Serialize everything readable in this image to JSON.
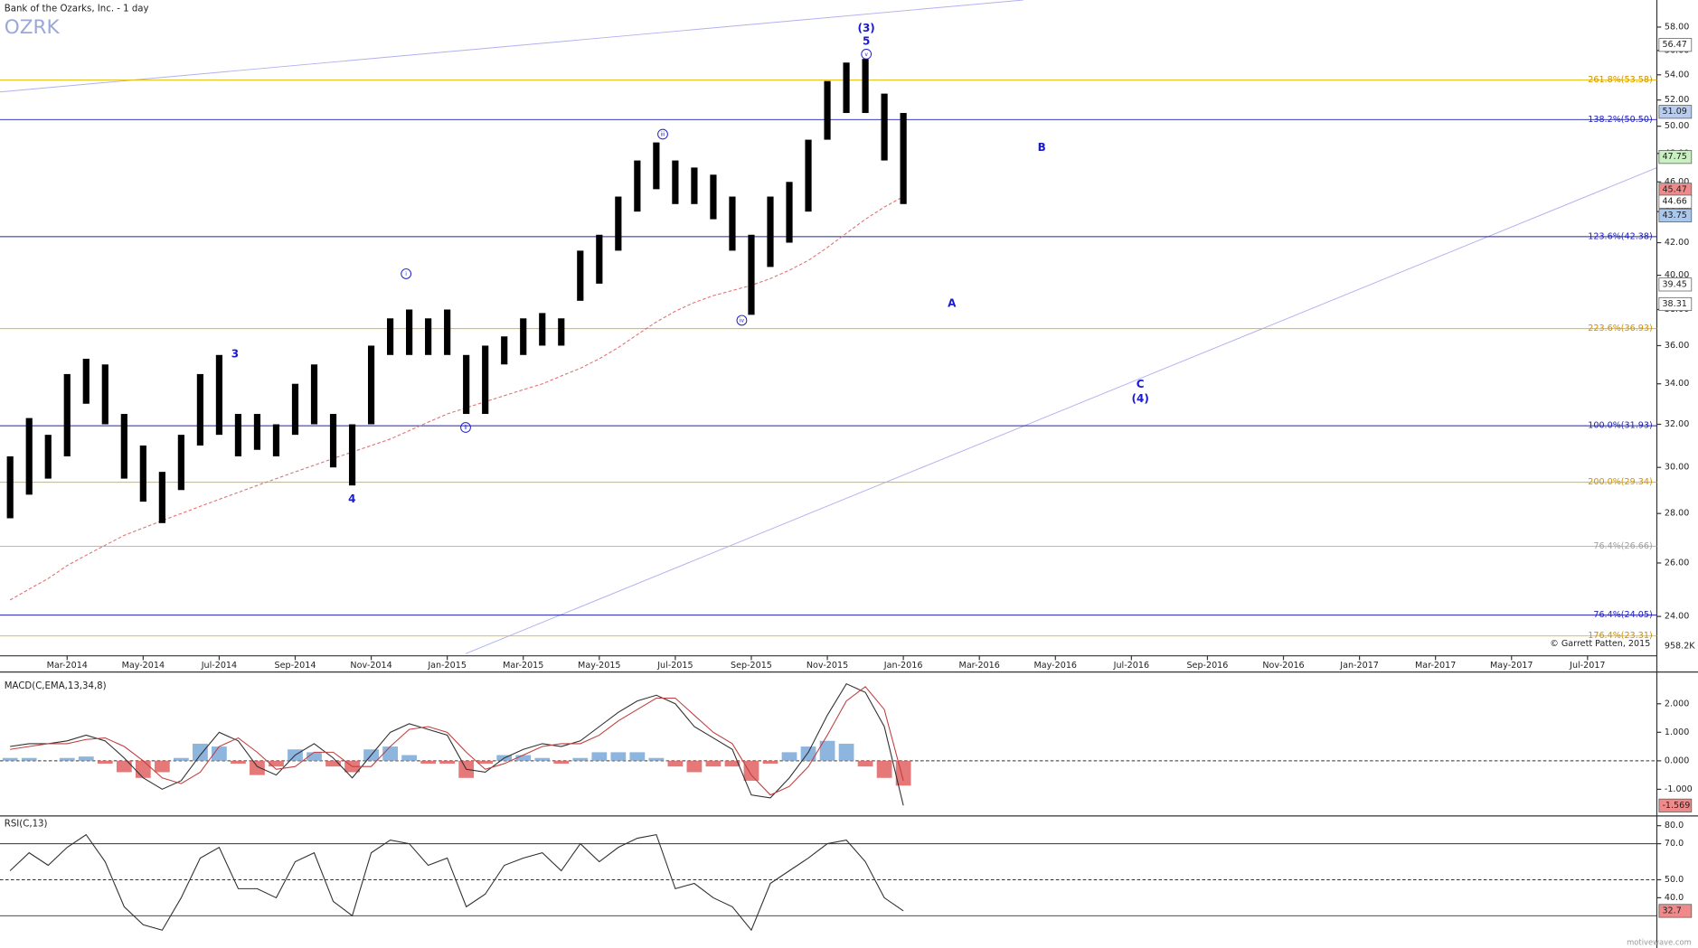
{
  "header": {
    "title": "Bank of the Ozarks, Inc. - 1 day",
    "symbol": "OZRK",
    "copyright": "© Garrett Patten, 2015",
    "watermark": "motivewave.com",
    "volume_label": "958.2K"
  },
  "chart_data": [
    {
      "type": "ohlc",
      "categories": [
        null,
        null,
        null,
        "Mar-2014",
        null,
        null,
        null,
        "May-2014",
        null,
        null,
        null,
        "Jul-2014",
        null,
        null,
        null,
        "Sep-2014",
        null,
        null,
        null,
        "Nov-2014",
        null,
        null,
        null,
        "Jan-2015",
        null,
        null,
        null,
        "Mar-2015",
        null,
        null,
        null,
        "May-2015",
        null,
        null,
        null,
        "Jul-2015",
        null,
        null,
        null,
        "Sep-2015",
        null,
        null,
        null,
        "Nov-2015",
        null,
        null,
        null,
        "Jan-2016",
        null,
        null,
        null,
        "Mar-2016",
        null,
        null,
        null,
        "May-2016",
        null,
        null,
        null,
        "Jul-2016",
        null,
        null,
        null,
        "Sep-2016",
        null,
        null,
        null,
        "Nov-2016",
        null,
        null,
        null,
        "Jan-2017",
        null,
        null,
        null,
        "Mar-2017",
        null,
        null,
        null,
        "May-2017",
        null,
        null,
        null,
        "Jul-2017"
      ],
      "series": [
        {
          "color": "#000000",
          "high": [
            30.5,
            32.3,
            31.5,
            34.5,
            35.3,
            35,
            32.5,
            31,
            29.8,
            31.5,
            34.5,
            35.5,
            32.5,
            32.5,
            32,
            34,
            35,
            32.5,
            32,
            36,
            37.5,
            38,
            37.5,
            38,
            35.5,
            36,
            36.5,
            37.5,
            37.8,
            37.5,
            41.5,
            42.5,
            45,
            47.5,
            48.8,
            47.5,
            47,
            46.5,
            45,
            42.5,
            45,
            46,
            49,
            53.5,
            55,
            55.3,
            52.5,
            51,
            null,
            null,
            null,
            null,
            null,
            null,
            null,
            null,
            null,
            null,
            null,
            null,
            null,
            null,
            null,
            null,
            null,
            null,
            null,
            null,
            null,
            null,
            null,
            null,
            null,
            null,
            null,
            null,
            null,
            null,
            null,
            null,
            null,
            null,
            null,
            null
          ],
          "low": [
            27.8,
            28.8,
            29.5,
            30.5,
            33,
            32,
            29.5,
            28.5,
            27.6,
            29,
            31,
            31.5,
            30.5,
            30.8,
            30.5,
            31.5,
            32,
            30,
            29.2,
            32,
            35.5,
            35.5,
            35.5,
            35.5,
            32.5,
            32.5,
            35,
            35.5,
            36,
            36,
            38.5,
            39.5,
            41.5,
            44,
            45.5,
            44.5,
            44.5,
            43.5,
            41.5,
            37.7,
            40.5,
            42,
            44,
            49,
            51,
            51,
            47.5,
            44.5,
            null,
            null,
            null,
            null,
            null,
            null,
            null,
            null,
            null,
            null,
            null,
            null,
            null,
            null,
            null,
            null,
            null,
            null,
            null,
            null,
            null,
            null,
            null,
            null,
            null,
            null,
            null,
            null,
            null,
            null,
            null,
            null,
            null,
            null,
            null,
            null
          ]
        }
      ],
      "overlays": [
        {
          "color": "#e07070",
          "values": [
            24.6,
            25.0,
            25.4,
            25.9,
            26.3,
            26.7,
            27.1,
            27.4,
            27.7,
            28.0,
            28.3,
            28.6,
            28.9,
            29.2,
            29.5,
            29.8,
            30.1,
            30.4,
            30.7,
            31.0,
            31.3,
            31.7,
            32.1,
            32.5,
            32.8,
            33.1,
            33.4,
            33.7,
            34.0,
            34.4,
            34.8,
            35.3,
            35.9,
            36.6,
            37.3,
            37.9,
            38.4,
            38.8,
            39.1,
            39.4,
            39.8,
            40.3,
            40.9,
            41.7,
            42.6,
            43.5,
            44.3,
            45.0,
            null,
            null,
            null,
            null,
            null,
            null,
            null,
            null,
            null,
            null,
            null,
            null,
            null,
            null,
            null,
            null,
            null,
            null,
            null,
            null,
            null,
            null,
            null,
            null,
            null,
            null,
            null,
            null,
            null,
            null,
            null,
            null,
            null,
            null,
            null,
            null
          ]
        }
      ],
      "ylim": [
        22.7,
        60.4
      ],
      "log_scale": true,
      "yticks": [
        {
          "value": 24,
          "label": "24.00"
        },
        {
          "value": 26,
          "label": "26.00"
        },
        {
          "value": 28,
          "label": "28.00"
        },
        {
          "value": 30,
          "label": "30.00"
        },
        {
          "value": 32,
          "label": "32.00"
        },
        {
          "value": 34,
          "label": "34.00"
        },
        {
          "value": 36,
          "label": "36.00"
        },
        {
          "value": 38,
          "label": "38.00"
        },
        {
          "value": 40,
          "label": "40.00"
        },
        {
          "value": 42,
          "label": "42.00"
        },
        {
          "value": 44,
          "label": "44.00"
        },
        {
          "value": 46,
          "label": "46.00"
        },
        {
          "value": 48,
          "label": "48.00"
        },
        {
          "value": 50,
          "label": "50.00"
        },
        {
          "value": 52,
          "label": "52.00"
        },
        {
          "value": 54,
          "label": "54.00"
        },
        {
          "value": 56,
          "label": "56.00"
        },
        {
          "value": 58,
          "label": "58.00"
        }
      ],
      "levels": [
        {
          "value": 53.58,
          "label": "261.8%(53.58)",
          "color": "#e8b800",
          "text_color": "#d09000"
        },
        {
          "value": 50.5,
          "label": "138.2%(50.50)",
          "color": "#2020b0",
          "text_color": "#2020b0"
        },
        {
          "value": 42.38,
          "label": "123.6%(42.38)",
          "color": "#2020b0",
          "text_color": "#2020b0"
        },
        {
          "value": 36.93,
          "label": "223.6%(36.93)",
          "color": "#e8b800",
          "text_color": "#d09000"
        },
        {
          "value": 31.93,
          "label": "100.0%(31.93)",
          "color": "#2020b0",
          "text_color": "#2020b0"
        },
        {
          "value": 29.34,
          "label": "200.0%(29.34)",
          "color": "#e8b800",
          "text_color": "#d09000"
        },
        {
          "value": 26.66,
          "label": "76.4%(26.66)",
          "color": "#b0b0b0",
          "text_color": "#a0a0a0"
        },
        {
          "value": 24.05,
          "label": "76.4%(24.05)",
          "color": "#2020b0",
          "text_color": "#2020b0"
        },
        {
          "value": 23.31,
          "label": "176.4%(23.31)",
          "color": "#e8b800",
          "text_color": "#d09000"
        }
      ],
      "price_markers": [
        {
          "value": 56.47,
          "color": "#ffffff"
        },
        {
          "value": 51.09,
          "color": "#b8ccf0"
        },
        {
          "value": 47.75,
          "color": "#c8f0c0"
        },
        {
          "value": 45.47,
          "color": "#f08a8a"
        },
        {
          "value": 44.66,
          "color": "#ffffff"
        },
        {
          "value": 43.75,
          "color": "#a8c8f0"
        },
        {
          "value": 39.45,
          "color": "#ffffff"
        },
        {
          "value": 38.31,
          "color": "#ffffff"
        }
      ],
      "annotations": [
        {
          "text": "3"
        },
        {
          "text": "4"
        },
        {
          "text": "i",
          "circled": true
        },
        {
          "text": "ii",
          "circled": true
        },
        {
          "text": "iii",
          "circled": true
        },
        {
          "text": "iv",
          "circled": true
        },
        {
          "text": "v",
          "circled": true
        },
        {
          "text": "5"
        },
        {
          "text": "(3)"
        },
        {
          "text": "A"
        },
        {
          "text": "B"
        },
        {
          "text": "C"
        },
        {
          "text": "(4)"
        }
      ]
    },
    {
      "type": "macd",
      "title": "MACD(C,EMA,13,34,8)",
      "series": [
        {
          "color": "#303030",
          "values": [
            0.5,
            0.6,
            0.6,
            0.7,
            0.9,
            0.7,
            0.1,
            -0.6,
            -1.0,
            -0.7,
            0.2,
            1.0,
            0.7,
            -0.2,
            -0.5,
            0.2,
            0.6,
            0.1,
            -0.6,
            0.2,
            1.0,
            1.3,
            1.1,
            0.9,
            -0.3,
            -0.4,
            0.1,
            0.4,
            0.6,
            0.5,
            0.7,
            1.2,
            1.7,
            2.1,
            2.3,
            2.0,
            1.2,
            0.8,
            0.4,
            -1.2,
            -1.3,
            -0.6,
            0.3,
            1.6,
            2.7,
            2.4,
            1.2,
            -1.569
          ]
        },
        {
          "color": "#c04040",
          "values": [
            0.4,
            0.5,
            0.6,
            0.6,
            0.75,
            0.8,
            0.5,
            0.0,
            -0.6,
            -0.8,
            -0.4,
            0.5,
            0.8,
            0.3,
            -0.3,
            -0.2,
            0.3,
            0.3,
            -0.2,
            -0.2,
            0.5,
            1.1,
            1.2,
            1.0,
            0.3,
            -0.3,
            -0.1,
            0.2,
            0.5,
            0.6,
            0.6,
            0.9,
            1.4,
            1.8,
            2.2,
            2.2,
            1.6,
            1.0,
            0.6,
            -0.5,
            -1.2,
            -0.9,
            -0.2,
            0.9,
            2.1,
            2.6,
            1.8,
            -0.7
          ]
        }
      ],
      "histogram": {
        "positive_color": "#7aa8d8",
        "negative_color": "#e06060",
        "values": [
          0.1,
          0.1,
          0,
          0.1,
          0.15,
          -0.1,
          -0.4,
          -0.6,
          -0.4,
          0.1,
          0.6,
          0.5,
          -0.1,
          -0.5,
          -0.2,
          0.4,
          0.3,
          -0.2,
          -0.4,
          0.4,
          0.5,
          0.2,
          -0.1,
          -0.1,
          -0.6,
          -0.1,
          0.2,
          0.2,
          0.1,
          -0.1,
          0.1,
          0.3,
          0.3,
          0.3,
          0.1,
          -0.2,
          -0.4,
          -0.2,
          -0.2,
          -0.7,
          -0.1,
          0.3,
          0.5,
          0.7,
          0.6,
          -0.2,
          -0.6,
          -0.87
        ]
      },
      "ylim": [
        -1.86,
        3.0
      ],
      "yticks": [
        {
          "value": -1,
          "label": "-1.000"
        },
        {
          "value": 0,
          "label": "0.000"
        },
        {
          "value": 1,
          "label": "1.000"
        },
        {
          "value": 2,
          "label": "2.000"
        }
      ],
      "levels": [
        {
          "value": 0,
          "style": "dashed"
        }
      ],
      "marker": {
        "value": -1.569,
        "color": "#f08a8a"
      }
    },
    {
      "type": "rsi",
      "title": "RSI(C,13)",
      "series": [
        {
          "color": "#303030",
          "values": [
            55,
            65,
            58,
            68,
            75,
            60,
            35,
            25,
            22,
            40,
            62,
            68,
            45,
            45,
            40,
            60,
            65,
            38,
            30,
            65,
            72,
            70,
            58,
            62,
            35,
            42,
            58,
            62,
            65,
            55,
            70,
            60,
            68,
            73,
            75,
            45,
            48,
            40,
            35,
            22,
            48,
            55,
            62,
            70,
            72,
            60,
            40,
            32.7
          ]
        }
      ],
      "ylim": [
        12.1,
        83.6
      ],
      "yticks": [
        {
          "value": 40,
          "label": "40.0"
        },
        {
          "value": 50,
          "label": "50.0"
        },
        {
          "value": 70,
          "label": "70.0"
        },
        {
          "value": 80,
          "label": "80.0"
        }
      ],
      "levels": [
        {
          "value": 70,
          "style": "solid"
        },
        {
          "value": 50,
          "style": "dashed"
        },
        {
          "value": 30,
          "style": "solid"
        }
      ],
      "marker": {
        "value": 32.7,
        "color": "#f08a8a"
      }
    }
  ]
}
